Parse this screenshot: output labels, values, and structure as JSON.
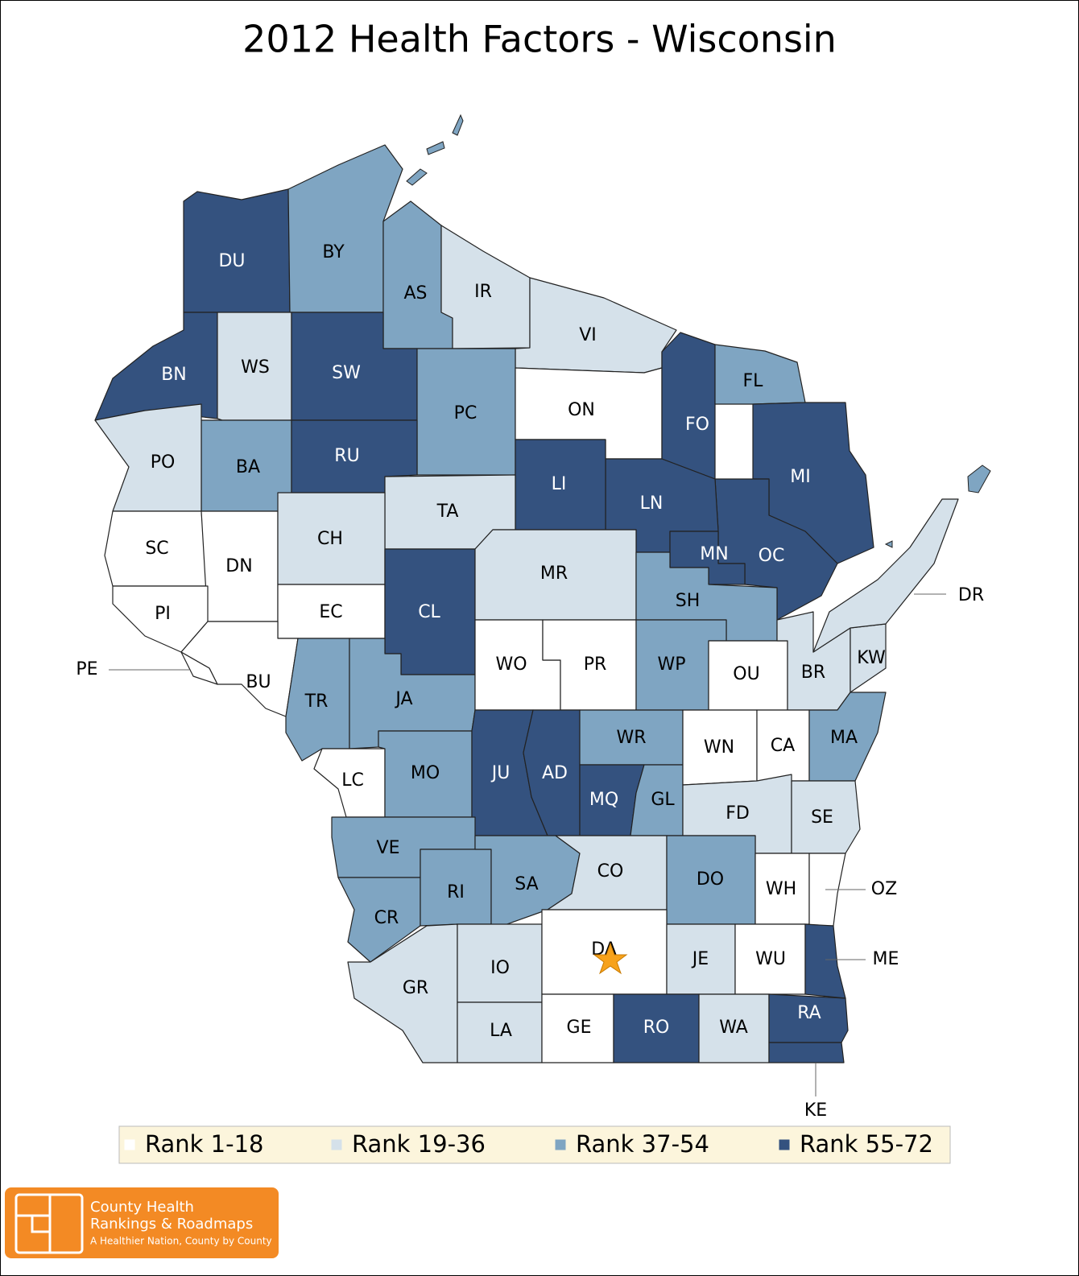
{
  "title": "2012 Health Factors - Wisconsin",
  "legend": [
    {
      "label": "Rank 1-18",
      "color": "#ffffff"
    },
    {
      "label": "Rank 19-36",
      "color": "#d5e1ea"
    },
    {
      "label": "Rank 37-54",
      "color": "#7fa5c2"
    },
    {
      "label": "Rank 55-72",
      "color": "#34527f"
    }
  ],
  "counties": [
    {
      "label": "DU",
      "group": 3
    },
    {
      "label": "BY",
      "group": 2
    },
    {
      "label": "AS",
      "group": 2
    },
    {
      "label": "IR",
      "group": 1
    },
    {
      "label": "VI",
      "group": 1
    },
    {
      "label": "BN",
      "group": 3
    },
    {
      "label": "WS",
      "group": 1
    },
    {
      "label": "SW",
      "group": 3
    },
    {
      "label": "PC",
      "group": 2
    },
    {
      "label": "ON",
      "group": 0
    },
    {
      "label": "FO",
      "group": 3
    },
    {
      "label": "FL",
      "group": 2
    },
    {
      "label": "MI",
      "group": 3
    },
    {
      "label": "OC",
      "group": 3
    },
    {
      "label": "LN",
      "group": 3
    },
    {
      "label": "MN",
      "group": 3
    },
    {
      "label": "BA",
      "group": 2
    },
    {
      "label": "PO",
      "group": 1
    },
    {
      "label": "RU",
      "group": 3
    },
    {
      "label": "LI",
      "group": 3
    },
    {
      "label": "TA",
      "group": 1
    },
    {
      "label": "SC",
      "group": 0
    },
    {
      "label": "DN",
      "group": 0
    },
    {
      "label": "CH",
      "group": 1
    },
    {
      "label": "EC",
      "group": 0
    },
    {
      "label": "PI",
      "group": 0
    },
    {
      "label": "BU",
      "group": 0
    },
    {
      "label": "CL",
      "group": 3
    },
    {
      "label": "MR",
      "group": 1
    },
    {
      "label": "SH",
      "group": 2
    },
    {
      "label": "TR",
      "group": 2
    },
    {
      "label": "JA",
      "group": 2
    },
    {
      "label": "WO",
      "group": 0
    },
    {
      "label": "PR",
      "group": 0
    },
    {
      "label": "WP",
      "group": 2
    },
    {
      "label": "OU",
      "group": 0
    },
    {
      "label": "BR",
      "group": 1
    },
    {
      "label": "KW",
      "group": 1
    },
    {
      "label": "DR",
      "group": 1
    },
    {
      "label": "LC",
      "group": 0
    },
    {
      "label": "MO",
      "group": 2
    },
    {
      "label": "JU",
      "group": 3
    },
    {
      "label": "AD",
      "group": 3
    },
    {
      "label": "WR",
      "group": 2
    },
    {
      "label": "MQ",
      "group": 3
    },
    {
      "label": "GL",
      "group": 2
    },
    {
      "label": "WN",
      "group": 0
    },
    {
      "label": "CA",
      "group": 0
    },
    {
      "label": "MA",
      "group": 2
    },
    {
      "label": "FD",
      "group": 1
    },
    {
      "label": "SE",
      "group": 1
    },
    {
      "label": "VE",
      "group": 2
    },
    {
      "label": "CR",
      "group": 2
    },
    {
      "label": "RI",
      "group": 2
    },
    {
      "label": "SA",
      "group": 2
    },
    {
      "label": "CO",
      "group": 1
    },
    {
      "label": "DO",
      "group": 2
    },
    {
      "label": "WH",
      "group": 0
    },
    {
      "label": "OZ",
      "group": 0
    },
    {
      "label": "GR",
      "group": 1
    },
    {
      "label": "IO",
      "group": 1
    },
    {
      "label": "DA",
      "group": 0
    },
    {
      "label": "JE",
      "group": 1
    },
    {
      "label": "WU",
      "group": 0
    },
    {
      "label": "ME",
      "group": 3
    },
    {
      "label": "LA",
      "group": 1
    },
    {
      "label": "GE",
      "group": 0
    },
    {
      "label": "RO",
      "group": 3
    },
    {
      "label": "WA",
      "group": 1
    },
    {
      "label": "RA",
      "group": 3
    },
    {
      "label": "KE",
      "group": 3
    },
    {
      "label": "PE",
      "group": 0
    }
  ],
  "logo": {
    "line1": "County Health",
    "line2": "Rankings & Roadmaps",
    "tagline": "A Healthier Nation, County by County"
  }
}
